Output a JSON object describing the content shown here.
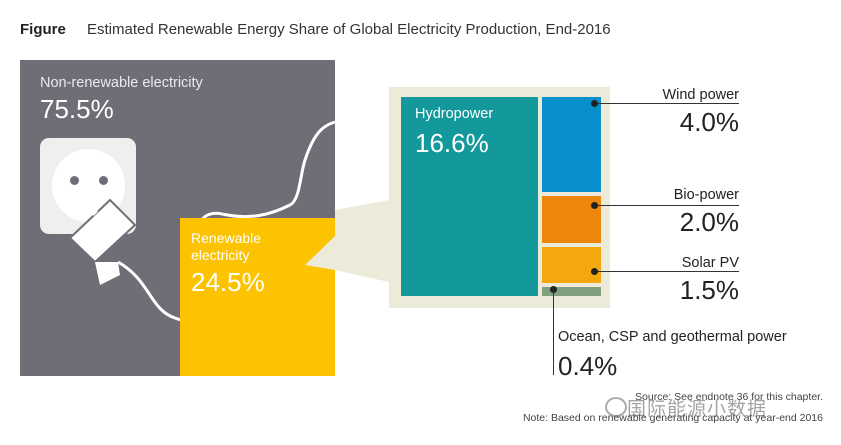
{
  "header": {
    "label": "Figure",
    "title": "Estimated Renewable Energy Share of Global Electricity Production, End-2016"
  },
  "chart_data": {
    "type": "treemap",
    "unit": "%",
    "top_level": [
      {
        "name": "Non-renewable electricity",
        "display": "75.5%",
        "value": 75.5,
        "color": "#6f6e77"
      },
      {
        "name": "Renewable electricity",
        "display": "24.5%",
        "value": 24.5,
        "color": "#fcc300"
      }
    ],
    "renewable_breakdown": [
      {
        "name": "Hydropower",
        "display": "16.6%",
        "value": 16.6,
        "color": "#13999b"
      },
      {
        "name": "Wind power",
        "display": "4.0%",
        "value": 4.0,
        "color": "#0a8fcd"
      },
      {
        "name": "Bio-power",
        "display": "2.0%",
        "value": 2.0,
        "color": "#ec860d"
      },
      {
        "name": "Solar PV",
        "display": "1.5%",
        "value": 1.5,
        "color": "#f3a80f"
      },
      {
        "name": "Ocean, CSP and geothermal power",
        "display": "0.4%",
        "value": 0.4,
        "color": "#7f9f7f"
      }
    ]
  },
  "notes": {
    "source": "Source: See endnote 36 for this chapter.",
    "footnote": "Note: Based on renewable generating capacity at year-end 2016",
    "watermark": "国际能源小数据"
  },
  "icons": {
    "socket": "power-socket-icon",
    "plug": "power-plug-icon",
    "watermark": "wechat-icon"
  }
}
